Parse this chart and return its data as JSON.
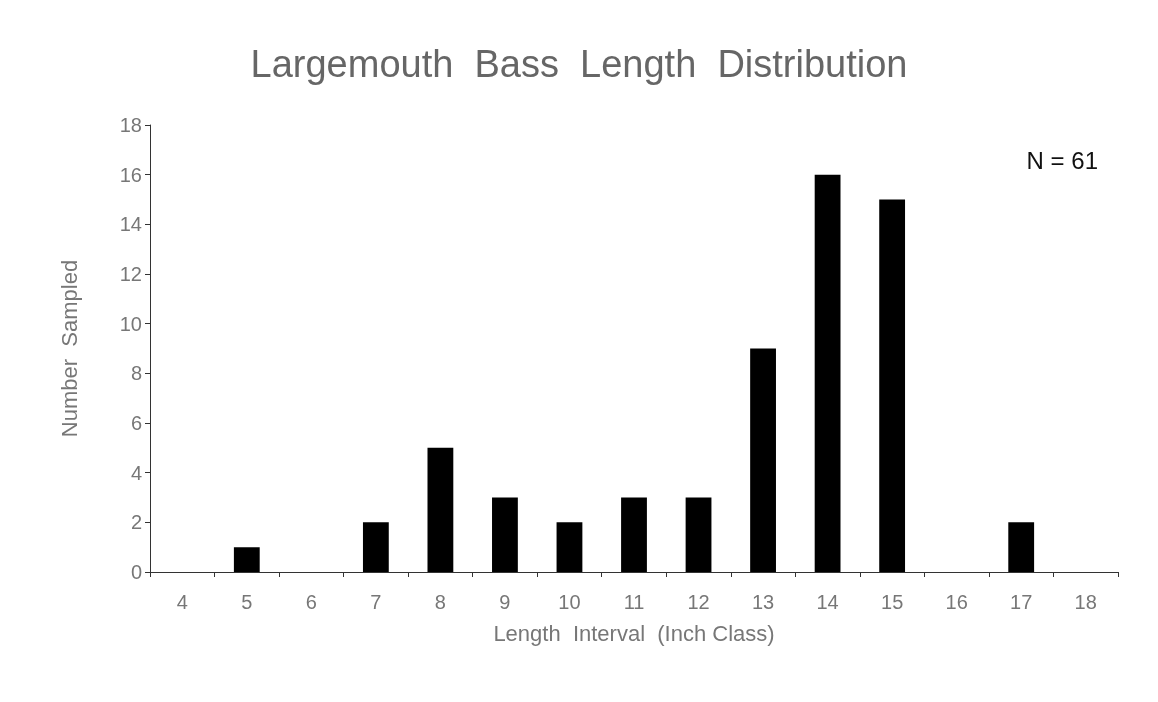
{
  "chart_data": {
    "type": "bar",
    "title": "Largemouth  Bass  Length  Distribution",
    "xlabel": "Length  Interval  (Inch Class)",
    "ylabel": "Number  Sampled",
    "categories": [
      "4",
      "5",
      "6",
      "7",
      "8",
      "9",
      "10",
      "11",
      "12",
      "13",
      "14",
      "15",
      "16",
      "17",
      "18"
    ],
    "values": [
      0,
      1,
      0,
      2,
      5,
      3,
      2,
      3,
      3,
      9,
      16,
      15,
      0,
      2,
      0
    ],
    "color": "#000000",
    "ylim": [
      0,
      18
    ],
    "yticks": [
      0,
      2,
      4,
      6,
      8,
      10,
      12,
      14,
      16,
      18
    ],
    "grid": false,
    "annotations": [
      "N = 61"
    ]
  }
}
